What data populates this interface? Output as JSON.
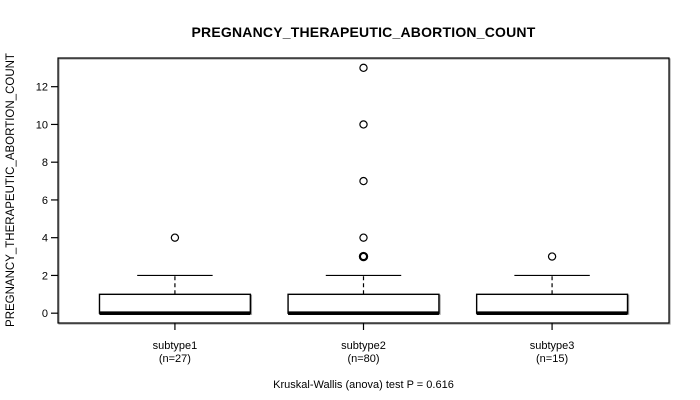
{
  "chart_data": {
    "type": "boxplot",
    "title": "PREGNANCY_THERAPEUTIC_ABORTION_COUNT",
    "ylabel": "PREGNANCY_THERAPEUTIC_ABORTION_COUNT",
    "xlabel": "",
    "annotation": "Kruskal-Wallis (anova) test P = 0.616",
    "ylim": [
      0,
      13
    ],
    "yticks": [
      0,
      2,
      4,
      6,
      8,
      10,
      12
    ],
    "grid": false,
    "colors": {
      "line": "#000000",
      "box_fill": "#ffffff",
      "background": "#ffffff"
    },
    "groups": [
      {
        "label": "subtype1",
        "sublabel": "(n=27)",
        "n": 27,
        "whisker_low": 0,
        "q1": 0,
        "median": 0,
        "q3": 1,
        "whisker_high": 2,
        "outliers": [
          4
        ]
      },
      {
        "label": "subtype2",
        "sublabel": "(n=80)",
        "n": 80,
        "whisker_low": 0,
        "q1": 0,
        "median": 0,
        "q3": 1,
        "whisker_high": 2,
        "outliers": [
          3,
          3,
          4,
          7,
          10,
          13
        ]
      },
      {
        "label": "subtype3",
        "sublabel": "(n=15)",
        "n": 15,
        "whisker_low": 0,
        "q1": 0,
        "median": 0,
        "q3": 1,
        "whisker_high": 2,
        "outliers": [
          3
        ]
      }
    ]
  }
}
